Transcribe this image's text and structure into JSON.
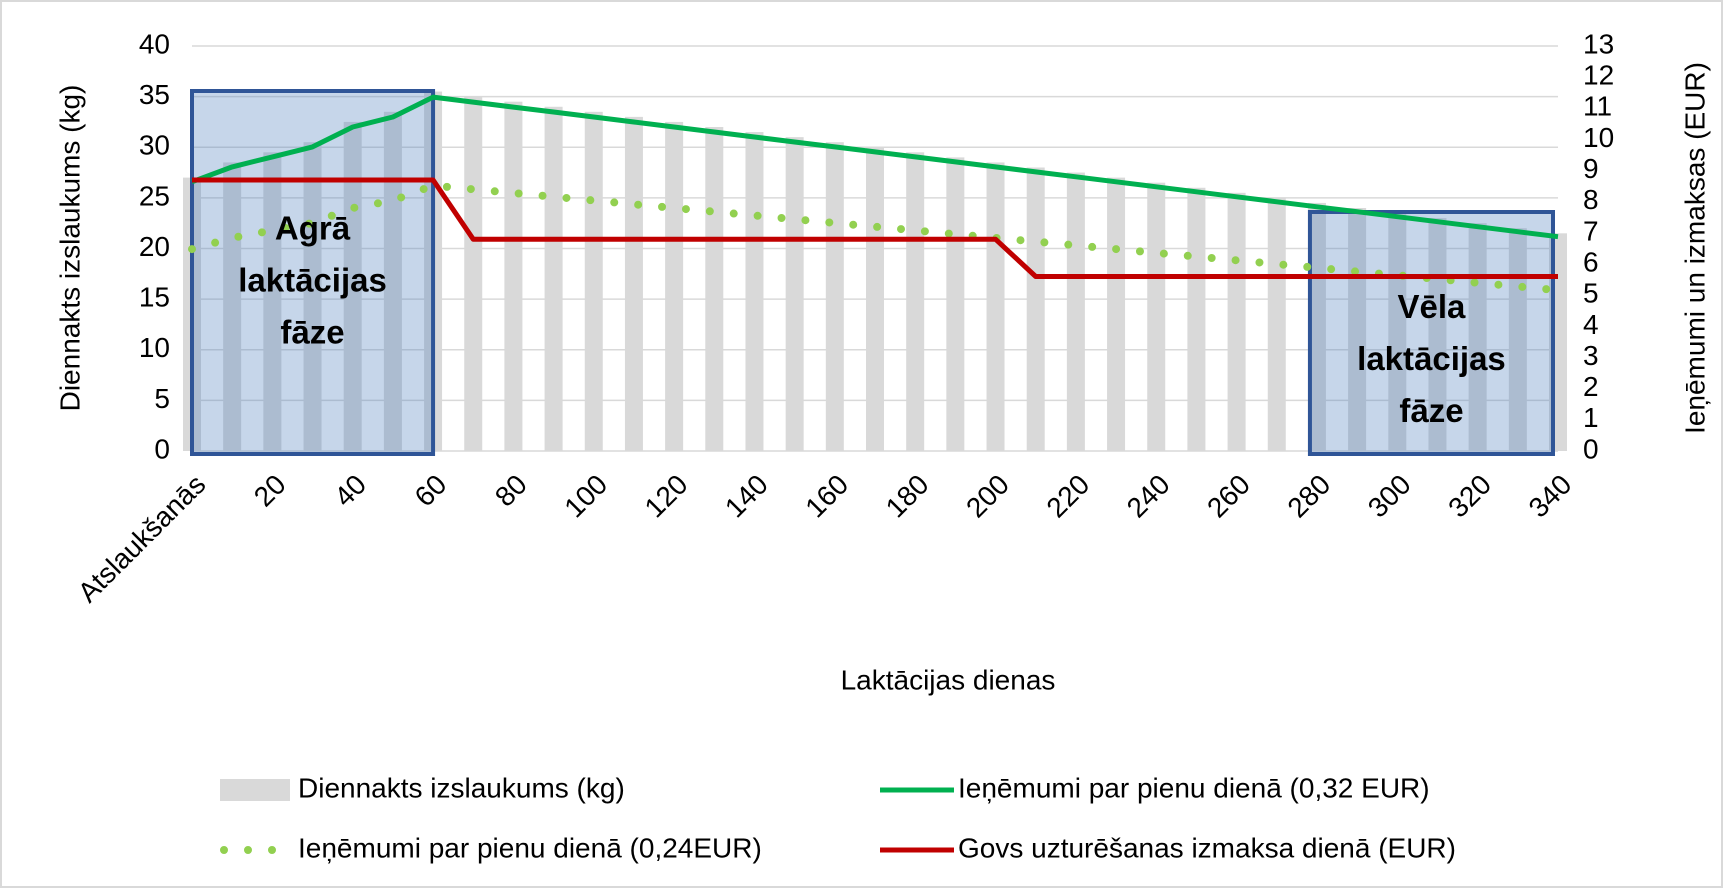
{
  "chart_data": {
    "type": "combo",
    "xlabel": "Laktācijas dienas",
    "ylabel": "Diennakts izslaukums (kg)",
    "y2label": "Ieņēmumi un izmaksas (EUR)",
    "categories": [
      "Atslaukšanās",
      null,
      "20",
      null,
      "40",
      null,
      "60",
      null,
      "80",
      null,
      "100",
      null,
      "120",
      null,
      "140",
      null,
      "160",
      null,
      "180",
      null,
      "200",
      null,
      "220",
      null,
      "240",
      null,
      "260",
      null,
      "280",
      null,
      "300",
      null,
      "320",
      null,
      "340"
    ],
    "ylim": [
      0,
      40
    ],
    "yticks": [
      0,
      5,
      10,
      15,
      20,
      25,
      30,
      35,
      40
    ],
    "y2lim": [
      0,
      13
    ],
    "y2ticks": [
      0,
      1,
      2,
      3,
      4,
      5,
      6,
      7,
      8,
      9,
      10,
      11,
      12,
      13
    ],
    "grid": true,
    "legend": "bottom",
    "series": [
      {
        "name": "Diennakts izslaukums (kg)",
        "type": "bar",
        "color": "#d9d9d9",
        "values": [
          27,
          28.5,
          29.5,
          30.5,
          32.5,
          33.5,
          35.5,
          35,
          34.5,
          34,
          33.5,
          33,
          32.5,
          32,
          31.5,
          31,
          30.5,
          30,
          29.5,
          29,
          28.5,
          28,
          27.5,
          27,
          26.5,
          26,
          25.5,
          25,
          24.5,
          24,
          23.5,
          23,
          22.5,
          22,
          21.5
        ]
      },
      {
        "name": "Ieņēmumi par pienu dienā (0,32 EUR)",
        "type": "line",
        "axis": "y2",
        "color": "#00b050",
        "style": "solid",
        "values": [
          8.64,
          9.12,
          9.44,
          9.76,
          10.4,
          10.72,
          11.36,
          11.2,
          11.04,
          10.88,
          10.72,
          10.56,
          10.4,
          10.24,
          10.08,
          9.92,
          9.76,
          9.6,
          9.44,
          9.28,
          9.12,
          8.96,
          8.8,
          8.64,
          8.48,
          8.32,
          8.16,
          8,
          7.84,
          7.68,
          7.52,
          7.36,
          7.2,
          7.04,
          6.88
        ]
      },
      {
        "name": "Ieņēmumi par pienu dienā (0,24EUR)",
        "type": "line",
        "axis": "y2",
        "color": "#92d050",
        "style": "dotted",
        "values": [
          6.48,
          6.84,
          7.08,
          7.32,
          7.8,
          8.04,
          8.52,
          8.4,
          8.28,
          8.16,
          8.04,
          7.92,
          7.8,
          7.68,
          7.56,
          7.44,
          7.32,
          7.2,
          7.08,
          6.96,
          6.84,
          6.72,
          6.6,
          6.48,
          6.36,
          6.24,
          6.12,
          6,
          5.88,
          5.76,
          5.64,
          5.52,
          5.4,
          5.28,
          5.16
        ]
      },
      {
        "name": "Govs uzturēšanas izmaksa dienā (EUR)",
        "type": "line",
        "axis": "y2",
        "color": "#c00000",
        "style": "solid",
        "values": [
          8.7,
          8.7,
          8.7,
          8.7,
          8.7,
          8.7,
          8.7,
          6.8,
          6.8,
          6.8,
          6.8,
          6.8,
          6.8,
          6.8,
          6.8,
          6.8,
          6.8,
          6.8,
          6.8,
          6.8,
          6.8,
          5.6,
          5.6,
          5.6,
          5.6,
          5.6,
          5.6,
          5.6,
          5.6,
          5.6,
          5.6,
          5.6,
          5.6,
          5.6,
          5.6
        ]
      }
    ],
    "annotations": [
      {
        "lines": [
          "Agrā",
          "laktācijas",
          "fāze"
        ]
      },
      {
        "lines": [
          "Vēla",
          "laktācijas",
          "fāze"
        ]
      }
    ]
  }
}
